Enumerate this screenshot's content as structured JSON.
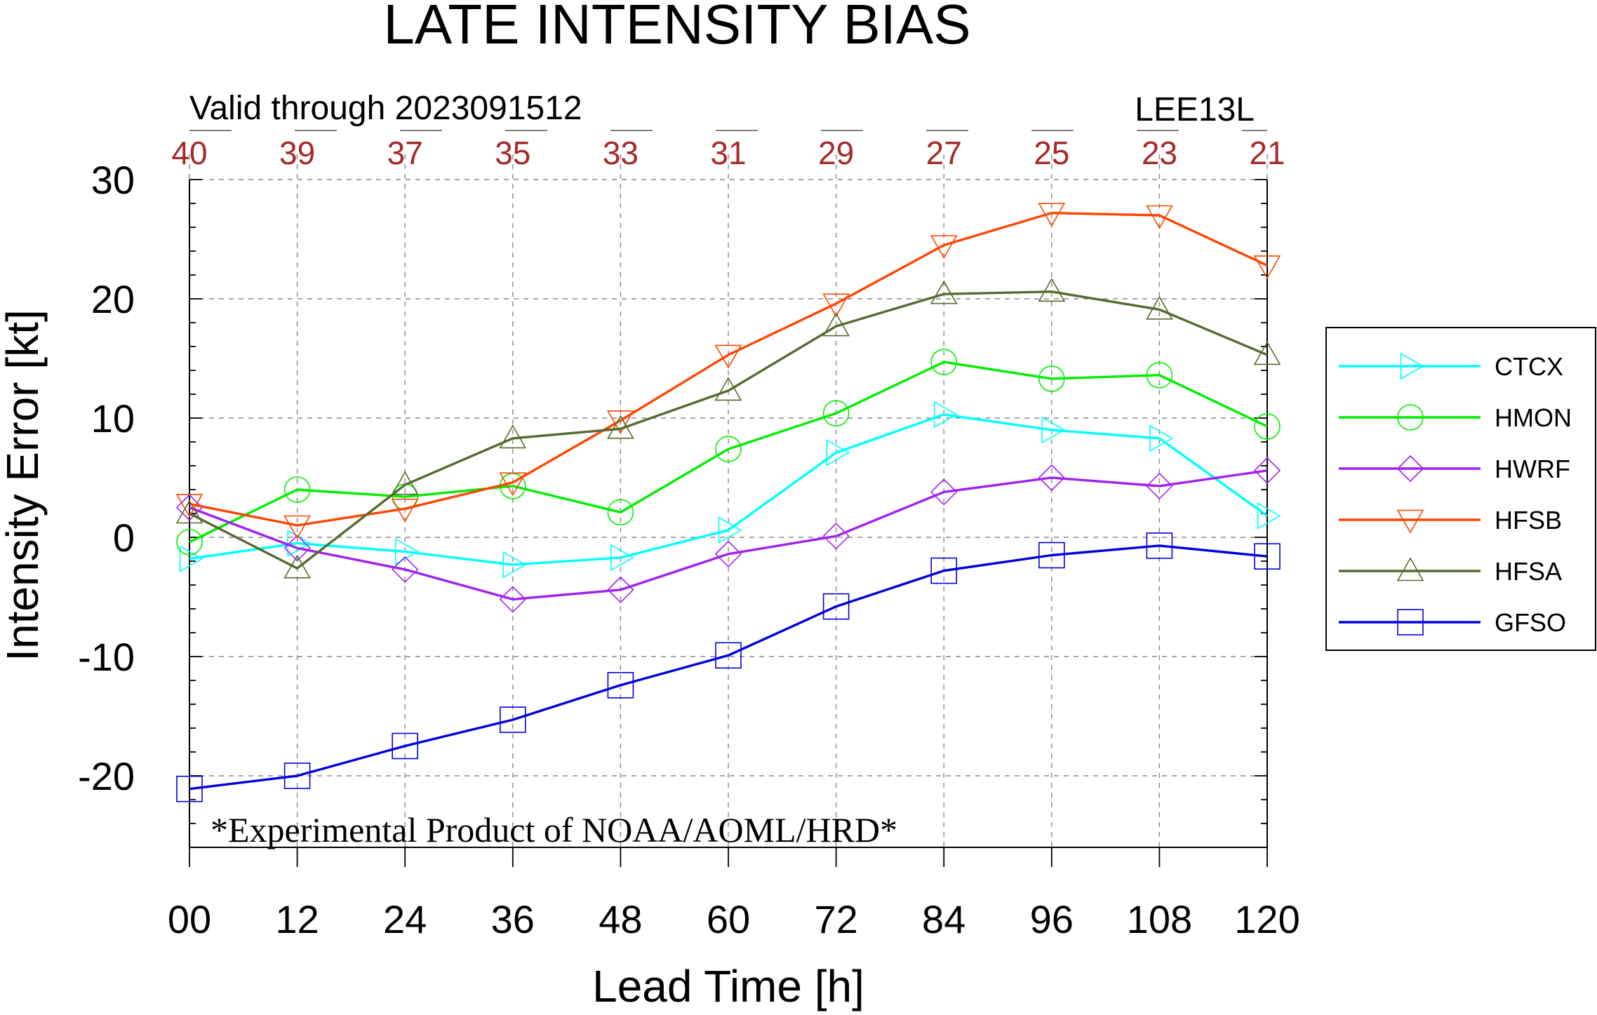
{
  "chart_data": {
    "type": "line",
    "title": "LATE INTENSITY BIAS",
    "subtitle": "Valid through 2023091512",
    "storm": "LEE13L",
    "xlabel": "Lead Time [h]",
    "ylabel": "Intensity Error [kt]",
    "x": [
      0,
      12,
      24,
      36,
      48,
      60,
      72,
      84,
      96,
      108,
      120
    ],
    "x_tick_labels": [
      "00",
      "12",
      "24",
      "36",
      "48",
      "60",
      "72",
      "84",
      "96",
      "108",
      "120"
    ],
    "y_ticks": [
      -20,
      -10,
      0,
      10,
      20,
      30
    ],
    "ylim": [
      -26,
      30
    ],
    "xlim": [
      0,
      120
    ],
    "case_counts": [
      "40",
      "39",
      "37",
      "35",
      "33",
      "31",
      "29",
      "27",
      "25",
      "23",
      "21"
    ],
    "grid": true,
    "legend_position": "right",
    "annotation": "*Experimental Product of NOAA/AOML/HRD*",
    "series": [
      {
        "name": "CTCX",
        "color": "#00ffff",
        "marker": "triangle-right",
        "values": [
          -1.8,
          -0.5,
          -1.2,
          -2.3,
          -1.7,
          0.6,
          7.1,
          10.3,
          9.0,
          8.3,
          1.8
        ]
      },
      {
        "name": "HMON",
        "color": "#00ee00",
        "marker": "circle",
        "values": [
          -0.4,
          4.0,
          3.4,
          4.3,
          2.1,
          7.4,
          10.4,
          14.7,
          13.3,
          13.6,
          9.3
        ]
      },
      {
        "name": "HWRF",
        "color": "#a020f0",
        "marker": "diamond",
        "values": [
          2.5,
          -0.9,
          -2.7,
          -5.2,
          -4.4,
          -1.4,
          0.1,
          3.8,
          5.0,
          4.3,
          5.6
        ]
      },
      {
        "name": "HFSB",
        "color": "#ff4500",
        "marker": "triangle-down",
        "values": [
          2.8,
          1.0,
          2.4,
          4.6,
          9.8,
          15.3,
          19.6,
          24.5,
          27.2,
          27.0,
          22.8
        ]
      },
      {
        "name": "HFSA",
        "color": "#556b2f",
        "marker": "triangle-up",
        "values": [
          2.0,
          -2.6,
          4.4,
          8.3,
          9.1,
          12.3,
          17.7,
          20.4,
          20.6,
          19.1,
          15.3
        ]
      },
      {
        "name": "GFSO",
        "color": "#0000dd",
        "marker": "square",
        "values": [
          -21.1,
          -20.0,
          -17.5,
          -15.3,
          -12.4,
          -9.9,
          -5.8,
          -2.8,
          -1.5,
          -0.7,
          -1.6
        ]
      }
    ]
  }
}
